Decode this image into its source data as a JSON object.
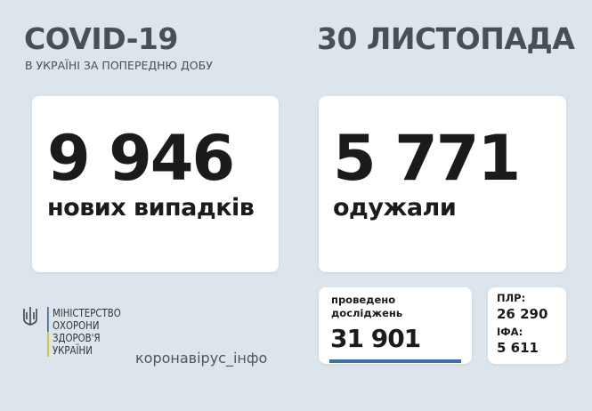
{
  "header": {
    "title": "COVID-19",
    "subtitle": "В УКРАЇНІ ЗА ПОПЕРЕДНЮ ДОБУ",
    "date": "30 ЛИСТОПАДА"
  },
  "new_cases": {
    "value": "9 946",
    "label": "нових випадків"
  },
  "recovered": {
    "value": "5 771",
    "label": "одужали"
  },
  "tests": {
    "label_line1": "проведено",
    "label_line2": "досліджень",
    "value": "31 901"
  },
  "tests_breakdown": {
    "pcr_label": "ПЛР:",
    "pcr_value": "26 290",
    "ifa_label": "ІФА:",
    "ifa_value": "5 611"
  },
  "ministry": {
    "lines": [
      "МІНІСТЕРСТВО",
      "ОХОРОНИ",
      "ЗДОРОВ'Я",
      "УКРАЇНИ"
    ],
    "icon": "trident-icon"
  },
  "website": "коронавірус_інфо",
  "colors": {
    "background": "#dce5eb",
    "accent_blue": "#3d6fa8",
    "accent_yellow": "#f2c300"
  }
}
